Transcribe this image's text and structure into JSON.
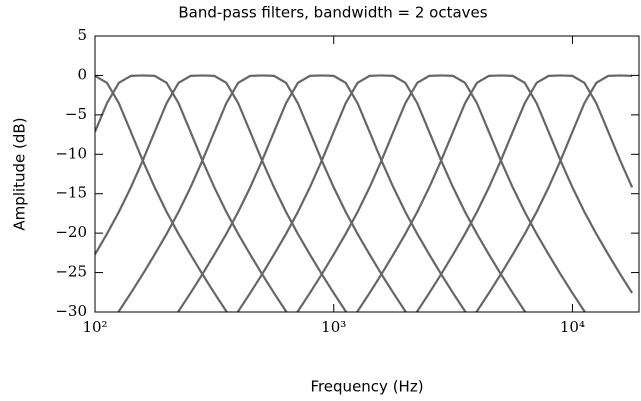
{
  "chart_data": {
    "type": "line",
    "title": "Band-pass filters, bandwidth = 2 octaves",
    "xlabel": "Frequency (Hz)",
    "ylabel": "Amplitude (dB)",
    "xscale": "log",
    "xlim": [
      100,
      19000
    ],
    "ylim": [
      -30,
      5
    ],
    "xticks": [
      {
        "value": 100,
        "label": "10²"
      },
      {
        "value": 1000,
        "label": "10³"
      },
      {
        "value": 10000,
        "label": "10⁴"
      }
    ],
    "yticks": [
      5,
      0,
      {
        "value": -5,
        "label": "−5"
      },
      {
        "value": -10,
        "label": "−10"
      },
      {
        "value": -15,
        "label": "−15"
      },
      {
        "value": -20,
        "label": "−20"
      },
      {
        "value": -25,
        "label": "−25"
      },
      {
        "value": -30,
        "label": "−30"
      }
    ],
    "grid": false,
    "x": [
      100,
      112.2,
      125.9,
      141.3,
      158.5,
      177.8,
      199.5,
      223.9,
      251.2,
      281.8,
      316.2,
      354.8,
      398.1,
      446.7,
      501.2,
      562.3,
      631.0,
      707.9,
      794.3,
      891.3,
      1000,
      1122,
      1259,
      1413,
      1585,
      1778,
      1995,
      2239,
      2512,
      2818,
      3162,
      3548,
      3981,
      4467,
      5012,
      5623,
      6310,
      7079,
      7943,
      8913,
      10000,
      11220,
      12589,
      14125,
      15849,
      17783
    ],
    "series": [
      {
        "color": "#666666",
        "values": [
          -0.06,
          -0.93,
          -3.52,
          -7.15,
          -10.8,
          -14.2,
          -17.3,
          -20.1,
          -22.7,
          -25.2,
          -27.6,
          -29.9,
          -32.1,
          null,
          null,
          null,
          null,
          null,
          null,
          null,
          null,
          null,
          null,
          null,
          null,
          null,
          null,
          null,
          null,
          null,
          null,
          null,
          null,
          null,
          null,
          null,
          null,
          null,
          null,
          null,
          null,
          null,
          null,
          null,
          null,
          null
        ]
      },
      {
        "color": "#666666",
        "values": [
          -7.15,
          -3.52,
          -0.93,
          -0.06,
          0,
          -0.06,
          -0.93,
          -3.52,
          -7.15,
          -10.8,
          -14.2,
          -17.3,
          -20.1,
          -22.7,
          -25.2,
          -27.6,
          -29.9,
          -32.1,
          null,
          null,
          null,
          null,
          null,
          null,
          null,
          null,
          null,
          null,
          null,
          null,
          null,
          null,
          null,
          null,
          null,
          null,
          null,
          null,
          null,
          null,
          null,
          null,
          null,
          null,
          null,
          null
        ]
      },
      {
        "color": "#666666",
        "values": [
          -22.7,
          -20.1,
          -17.3,
          -14.2,
          -10.8,
          -7.15,
          -3.52,
          -0.93,
          -0.06,
          0,
          -0.06,
          -0.93,
          -3.52,
          -7.15,
          -10.8,
          -14.2,
          -17.3,
          -20.1,
          -22.7,
          -25.2,
          -27.6,
          -29.9,
          -32.1,
          null,
          null,
          null,
          null,
          null,
          null,
          null,
          null,
          null,
          null,
          null,
          null,
          null,
          null,
          null,
          null,
          null,
          null,
          null,
          null,
          null,
          null,
          null
        ]
      },
      {
        "color": "#666666",
        "values": [
          null,
          -32.1,
          -29.9,
          -27.6,
          -25.2,
          -22.7,
          -20.1,
          -17.3,
          -14.2,
          -10.8,
          -7.15,
          -3.52,
          -0.93,
          -0.06,
          0,
          -0.06,
          -0.93,
          -3.52,
          -7.15,
          -10.8,
          -14.2,
          -17.3,
          -20.1,
          -22.7,
          -25.2,
          -27.6,
          -29.9,
          -32.1,
          null,
          null,
          null,
          null,
          null,
          null,
          null,
          null,
          null,
          null,
          null,
          null,
          null,
          null,
          null,
          null,
          null,
          null
        ]
      },
      {
        "color": "#666666",
        "values": [
          null,
          null,
          null,
          null,
          null,
          null,
          -32.1,
          -29.9,
          -27.6,
          -25.2,
          -22.7,
          -20.1,
          -17.3,
          -14.2,
          -10.8,
          -7.15,
          -3.52,
          -0.93,
          -0.06,
          0,
          -0.06,
          -0.93,
          -3.52,
          -7.15,
          -10.8,
          -14.2,
          -17.3,
          -20.1,
          -22.7,
          -25.2,
          -27.6,
          -29.9,
          -32.1,
          null,
          null,
          null,
          null,
          null,
          null,
          null,
          null,
          null,
          null,
          null,
          null,
          null
        ]
      },
      {
        "color": "#666666",
        "values": [
          null,
          null,
          null,
          null,
          null,
          null,
          null,
          null,
          null,
          null,
          null,
          -32.1,
          -29.9,
          -27.6,
          -25.2,
          -22.7,
          -20.1,
          -17.3,
          -14.2,
          -10.8,
          -7.15,
          -3.52,
          -0.93,
          -0.06,
          0,
          -0.06,
          -0.93,
          -3.52,
          -7.15,
          -10.8,
          -14.2,
          -17.3,
          -20.1,
          -22.7,
          -25.2,
          -27.6,
          -29.9,
          -32.1,
          null,
          null,
          null,
          null,
          null,
          null,
          null,
          null
        ]
      },
      {
        "color": "#666666",
        "values": [
          null,
          null,
          null,
          null,
          null,
          null,
          null,
          null,
          null,
          null,
          null,
          null,
          null,
          null,
          null,
          null,
          -32.1,
          -29.9,
          -27.6,
          -25.2,
          -22.7,
          -20.1,
          -17.3,
          -14.2,
          -10.8,
          -7.15,
          -3.52,
          -0.93,
          -0.06,
          0,
          -0.06,
          -0.93,
          -3.52,
          -7.15,
          -10.8,
          -14.2,
          -17.3,
          -20.1,
          -22.7,
          -25.2,
          -27.6,
          -29.9,
          -32.1,
          null,
          null,
          null
        ]
      },
      {
        "color": "#666666",
        "values": [
          null,
          null,
          null,
          null,
          null,
          null,
          null,
          null,
          null,
          null,
          null,
          null,
          null,
          null,
          null,
          null,
          null,
          null,
          null,
          null,
          null,
          -32.1,
          -29.9,
          -27.6,
          -25.2,
          -22.7,
          -20.1,
          -17.3,
          -14.2,
          -10.8,
          -7.15,
          -3.52,
          -0.93,
          -0.06,
          0,
          -0.06,
          -0.93,
          -3.52,
          -7.15,
          -10.8,
          -14.2,
          -17.3,
          -20.1,
          -22.7,
          -25.2,
          -27.6
        ]
      },
      {
        "color": "#666666",
        "values": [
          null,
          null,
          null,
          null,
          null,
          null,
          null,
          null,
          null,
          null,
          null,
          null,
          null,
          null,
          null,
          null,
          null,
          null,
          null,
          null,
          null,
          null,
          null,
          null,
          null,
          null,
          -32.1,
          -29.9,
          -27.6,
          -25.2,
          -22.7,
          -20.1,
          -17.3,
          -14.2,
          -10.8,
          -7.15,
          -3.52,
          -0.93,
          -0.06,
          0,
          -0.06,
          -0.93,
          -3.52,
          -7.15,
          -10.8,
          -14.2
        ]
      },
      {
        "color": "#666666",
        "values": [
          null,
          null,
          null,
          null,
          null,
          null,
          null,
          null,
          null,
          null,
          null,
          null,
          null,
          null,
          null,
          null,
          null,
          null,
          null,
          null,
          null,
          null,
          null,
          null,
          null,
          null,
          null,
          null,
          null,
          null,
          null,
          -32.1,
          -29.9,
          -27.6,
          -25.2,
          -22.7,
          -20.1,
          -17.3,
          -14.2,
          -10.8,
          -7.15,
          -3.52,
          -0.93,
          -0.06,
          0,
          -0.06
        ]
      }
    ]
  }
}
